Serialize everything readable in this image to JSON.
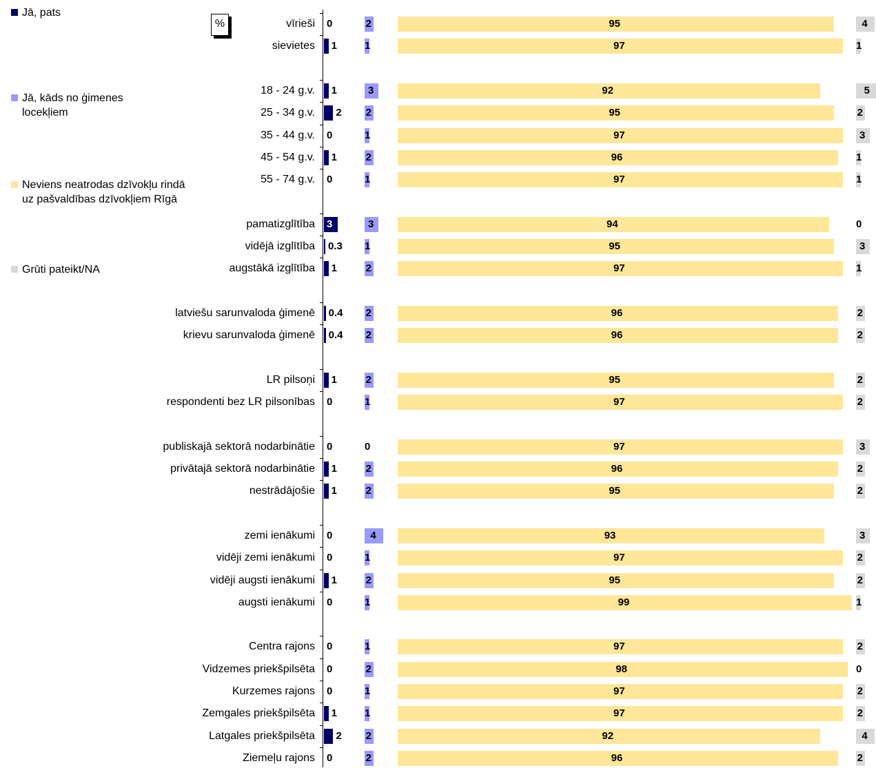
{
  "unit_label": "%",
  "colors": {
    "self": "#000066",
    "family": "#9999ff",
    "none": "#ffe699",
    "dk": "#d9d9d9"
  },
  "chart_data": {
    "type": "bar",
    "orientation": "horizontal",
    "stacked": false,
    "legend_position": "left",
    "categories": [
      "vīrieši",
      "sievietes",
      "18 - 24 g.v.",
      "25 - 34 g.v.",
      "35 - 44 g.v.",
      "45 - 54 g.v.",
      "55 - 74 g.v.",
      "pamatizglītība",
      "vidējā izglītība",
      "augstākā izglītība",
      "latviešu sarunvaloda ģimenē",
      "krievu sarunvaloda ģimenē",
      "LR pilsoņi",
      "respondenti bez LR pilsonības",
      "publiskajā sektorā nodarbinātie",
      "privātajā sektorā nodarbinātie",
      "nestrādājošie",
      "zemi ienākumi",
      "vidēji zemi ienākumi",
      "vidēji augsti ienākumi",
      "augsti ienākumi",
      "Centra rajons",
      "Vidzemes priekšpilsēta",
      "Kurzemes rajons",
      "Zemgales priekšpilsēta",
      "Latgales priekšpilsēta",
      "Ziemeļu rajons"
    ],
    "series": [
      {
        "name": "Jā, pats",
        "values": [
          0,
          1,
          1,
          2,
          0,
          1,
          0,
          3,
          0.3,
          1,
          0.4,
          0.4,
          1,
          0,
          0,
          1,
          1,
          0,
          0,
          1,
          0,
          0,
          0,
          0,
          1,
          2,
          0
        ]
      },
      {
        "name": "Jā, kāds no ģimenes locekļiem",
        "values": [
          2,
          1,
          3,
          2,
          1,
          2,
          1,
          3,
          1,
          2,
          2,
          2,
          2,
          1,
          0,
          2,
          2,
          4,
          1,
          2,
          1,
          1,
          2,
          1,
          1,
          2,
          2
        ]
      },
      {
        "name": "Neviens neatrodas dzīvokļu rindā uz pašvaldības dzīvokļiem Rīgā",
        "values": [
          95,
          97,
          92,
          95,
          97,
          96,
          97,
          94,
          95,
          97,
          96,
          96,
          95,
          97,
          97,
          96,
          95,
          93,
          97,
          95,
          99,
          97,
          98,
          97,
          97,
          92,
          96
        ]
      },
      {
        "name": "Grūti pateikt/NA",
        "values": [
          4,
          1,
          5,
          2,
          3,
          1,
          1,
          0,
          3,
          1,
          2,
          2,
          2,
          2,
          3,
          2,
          2,
          3,
          2,
          2,
          1,
          2,
          0,
          2,
          2,
          4,
          2
        ]
      }
    ]
  }
}
